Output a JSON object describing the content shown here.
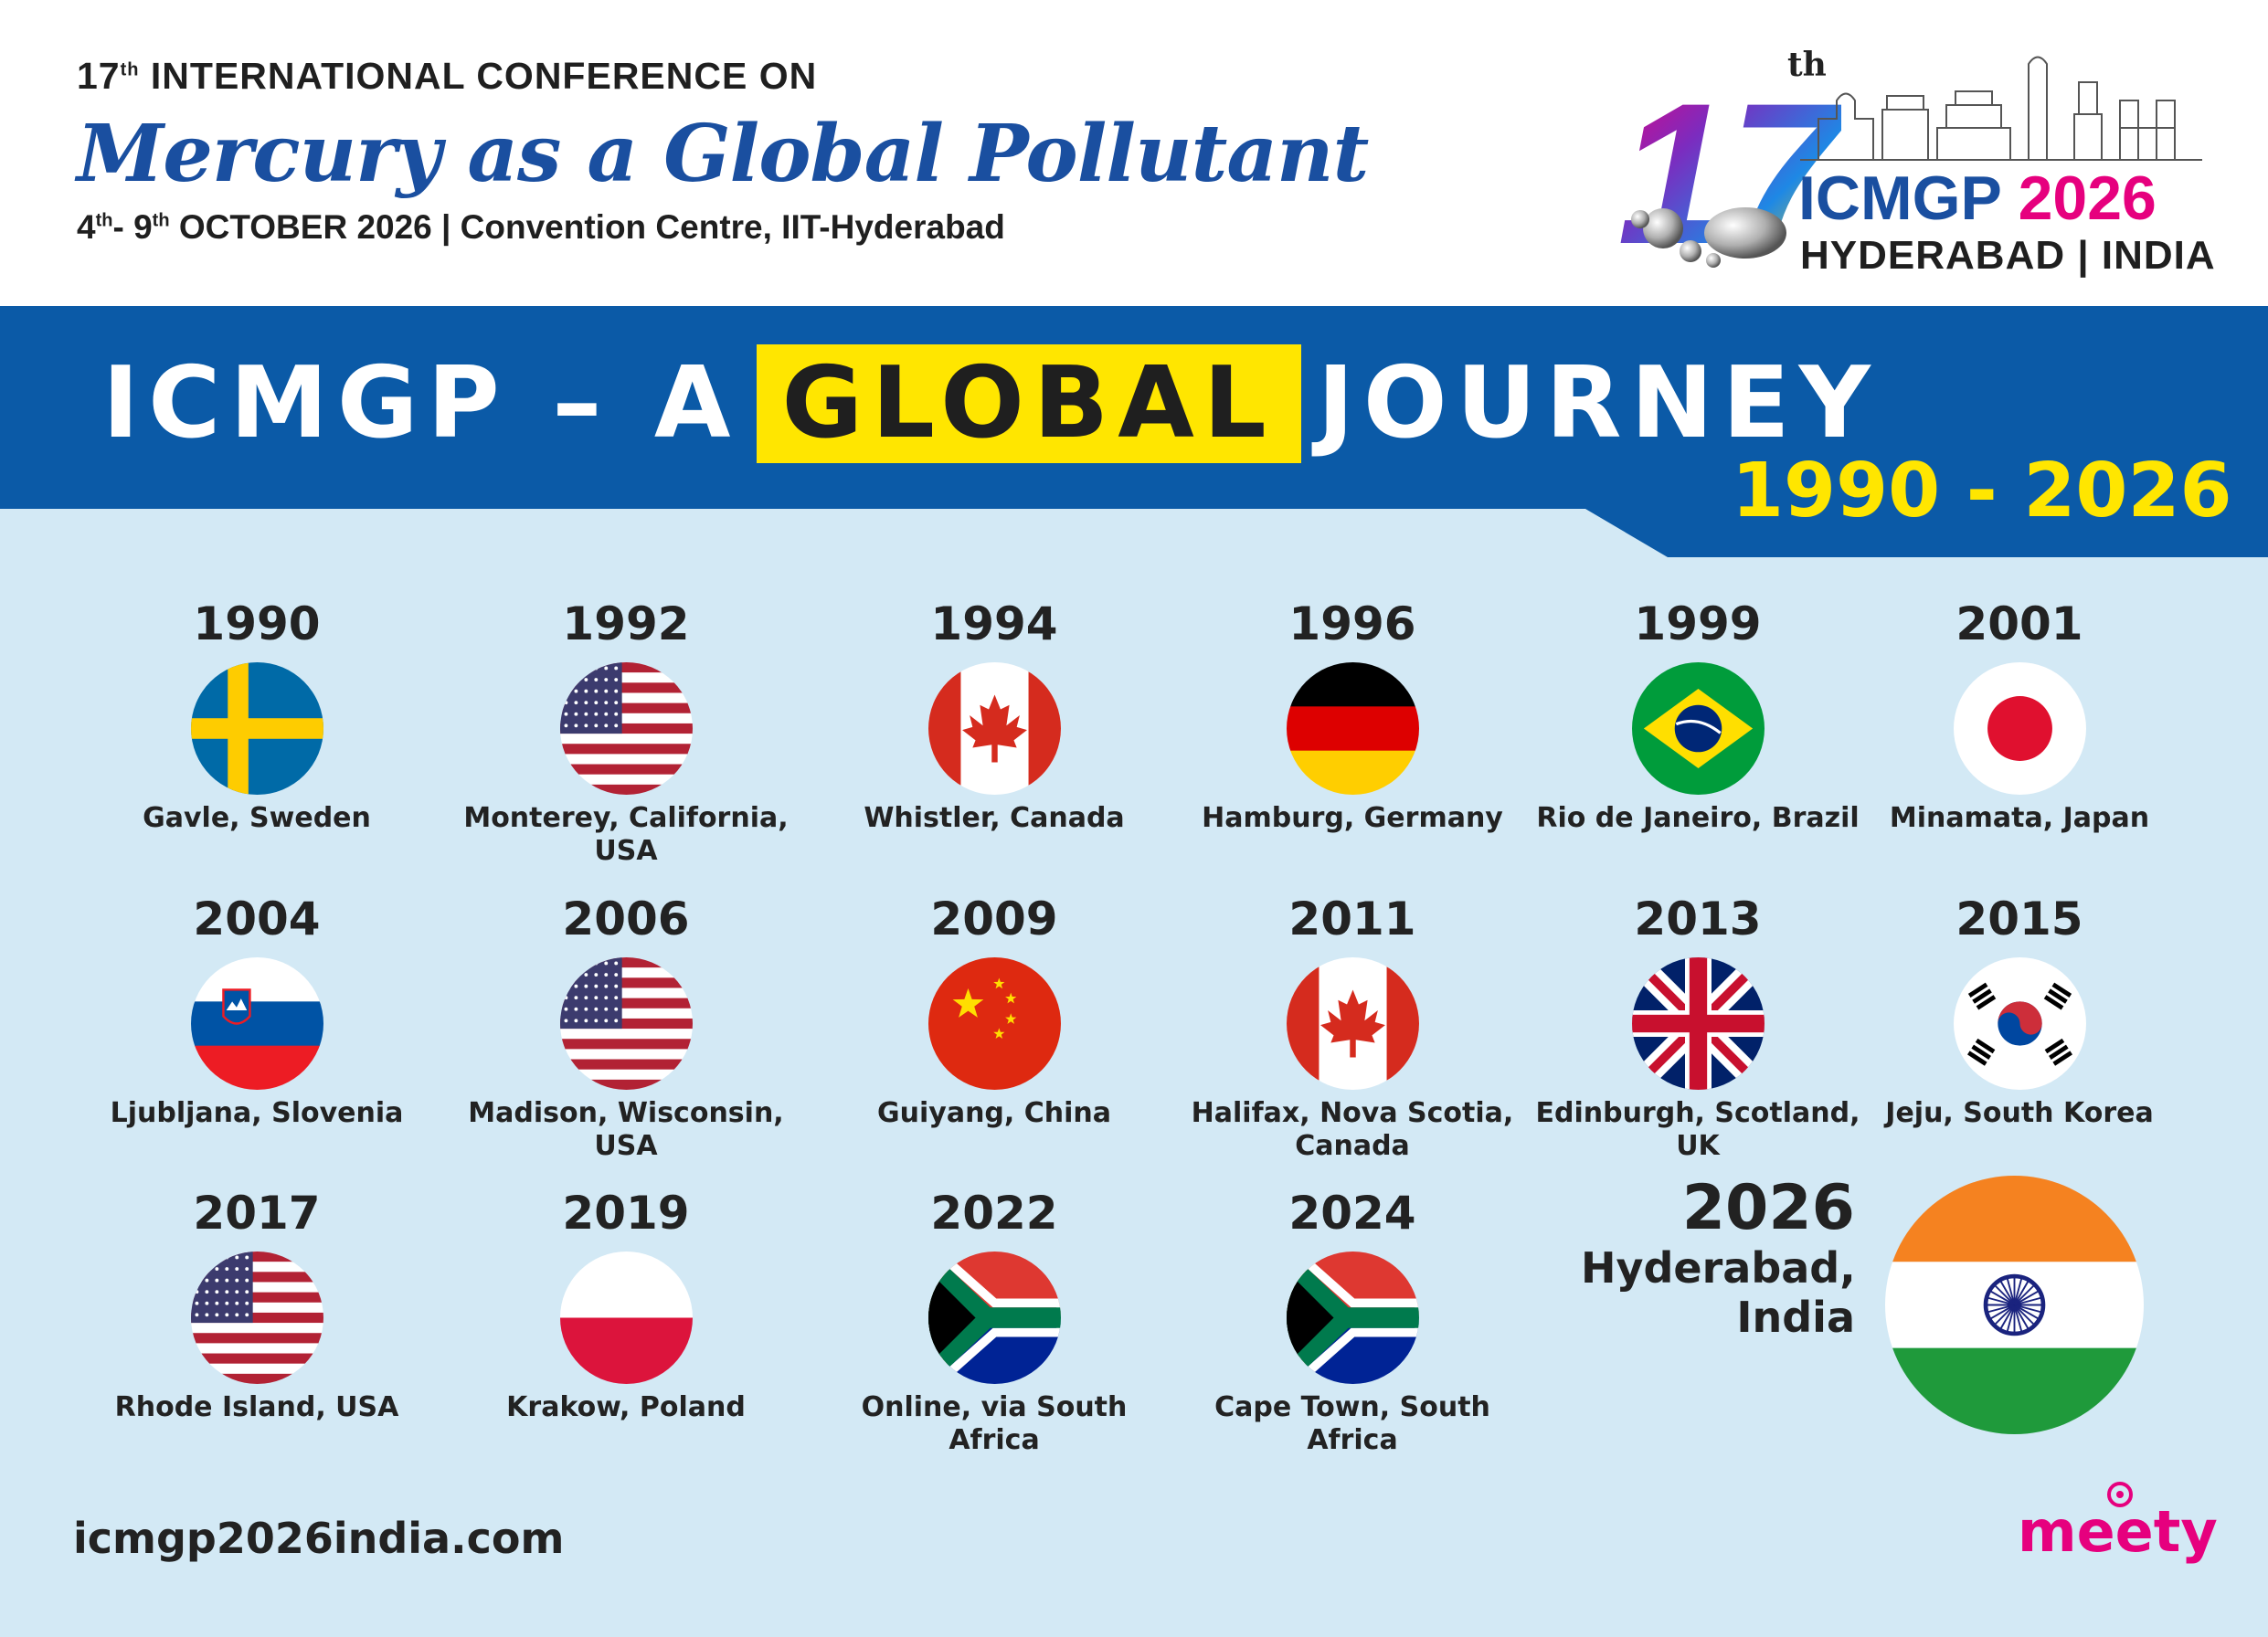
{
  "header": {
    "edition_number": "17",
    "edition_suffix": "th",
    "edition_text": "INTERNATIONAL CONFERENCE ON",
    "conference_title": "Mercury as a Global Pollutant",
    "date_start": "4",
    "date_start_suffix": "th",
    "date_sep": "- ",
    "date_end": "9",
    "date_end_suffix": "th",
    "date_rest": "OCTOBER 2026 | Convention Centre, IIT-Hyderabad"
  },
  "logo": {
    "number": "17",
    "suffix": "th",
    "event": "ICMGP",
    "year": "2026",
    "place": "HYDERABAD | INDIA"
  },
  "banner": {
    "title_part1": "ICMGP – A",
    "title_highlight": "GLOBAL",
    "title_part2": "JOURNEY",
    "range": "1990 - 2026",
    "color_blue": "#0b5aa7",
    "color_yellow": "#ffe600"
  },
  "venues": [
    {
      "year": "1990",
      "location": "Gavle, Sweden",
      "flag": "sweden"
    },
    {
      "year": "1992",
      "location": "Monterey, California, USA",
      "flag": "usa"
    },
    {
      "year": "1994",
      "location": "Whistler, Canada",
      "flag": "canada"
    },
    {
      "year": "1996",
      "location": "Hamburg, Germany",
      "flag": "germany"
    },
    {
      "year": "1999",
      "location": "Rio de Janeiro, Brazil",
      "flag": "brazil"
    },
    {
      "year": "2001",
      "location": "Minamata, Japan",
      "flag": "japan"
    },
    {
      "year": "2004",
      "location": "Ljubljana, Slovenia",
      "flag": "slovenia"
    },
    {
      "year": "2006",
      "location": "Madison, Wisconsin, USA",
      "flag": "usa"
    },
    {
      "year": "2009",
      "location": "Guiyang, China",
      "flag": "china"
    },
    {
      "year": "2011",
      "location": "Halifax, Nova Scotia, Canada",
      "flag": "canada"
    },
    {
      "year": "2013",
      "location": "Edinburgh, Scotland, UK",
      "flag": "uk"
    },
    {
      "year": "2015",
      "location": "Jeju, South Korea",
      "flag": "south-korea"
    },
    {
      "year": "2017",
      "location": "Rhode Island, USA",
      "flag": "usa"
    },
    {
      "year": "2019",
      "location": "Krakow, Poland",
      "flag": "poland"
    },
    {
      "year": "2022",
      "location": "Online, via South Africa",
      "flag": "south-africa"
    },
    {
      "year": "2024",
      "location": "Cape Town, South Africa",
      "flag": "south-africa"
    }
  ],
  "upcoming": {
    "year": "2026",
    "location_line1": "Hyderabad,",
    "location_line2": "India",
    "flag": "india"
  },
  "footer": {
    "website": "icmgp2026india.com",
    "brand": "meety"
  }
}
